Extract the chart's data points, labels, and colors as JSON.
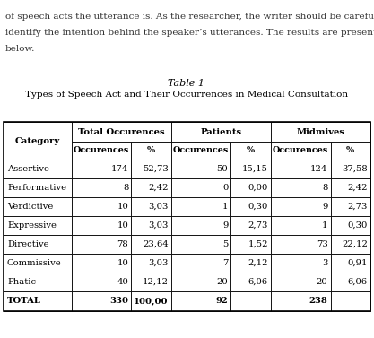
{
  "title_line1": "Table 1",
  "title_line2": "Types of Speech Act and Their Occurrences in Medical Consultation",
  "para_lines": [
    "of speech acts the utterance is. As the researcher, the writer should be careful to",
    "identify the intention behind the speaker’s utterances. The results are presented",
    "below."
  ],
  "col_groups": [
    "Total Occurences",
    "Patients",
    "Midmives"
  ],
  "col_headers": [
    "Occurences",
    "%",
    "Occurences",
    "%",
    "Occurences",
    "%"
  ],
  "row_header": "Category",
  "categories": [
    "Assertive",
    "Performative",
    "Verdictive",
    "Expressive",
    "Directive",
    "Commissive",
    "Phatic",
    "TOTAL"
  ],
  "data": [
    [
      "174",
      "52,73",
      "50",
      "15,15",
      "124",
      "37,58"
    ],
    [
      "8",
      "2,42",
      "0",
      "0,00",
      "8",
      "2,42"
    ],
    [
      "10",
      "3,03",
      "1",
      "0,30",
      "9",
      "2,73"
    ],
    [
      "10",
      "3,03",
      "9",
      "2,73",
      "1",
      "0,30"
    ],
    [
      "78",
      "23,64",
      "5",
      "1,52",
      "73",
      "22,12"
    ],
    [
      "10",
      "3,03",
      "7",
      "2,12",
      "3",
      "0,91"
    ],
    [
      "40",
      "12,12",
      "20",
      "6,06",
      "20",
      "6,06"
    ],
    [
      "330",
      "100,00",
      "92",
      "",
      "238",
      ""
    ]
  ],
  "font_size_para": 7.5,
  "font_size_title": 8.0,
  "font_size_table": 7.2,
  "watermark_alpha": 0.18
}
